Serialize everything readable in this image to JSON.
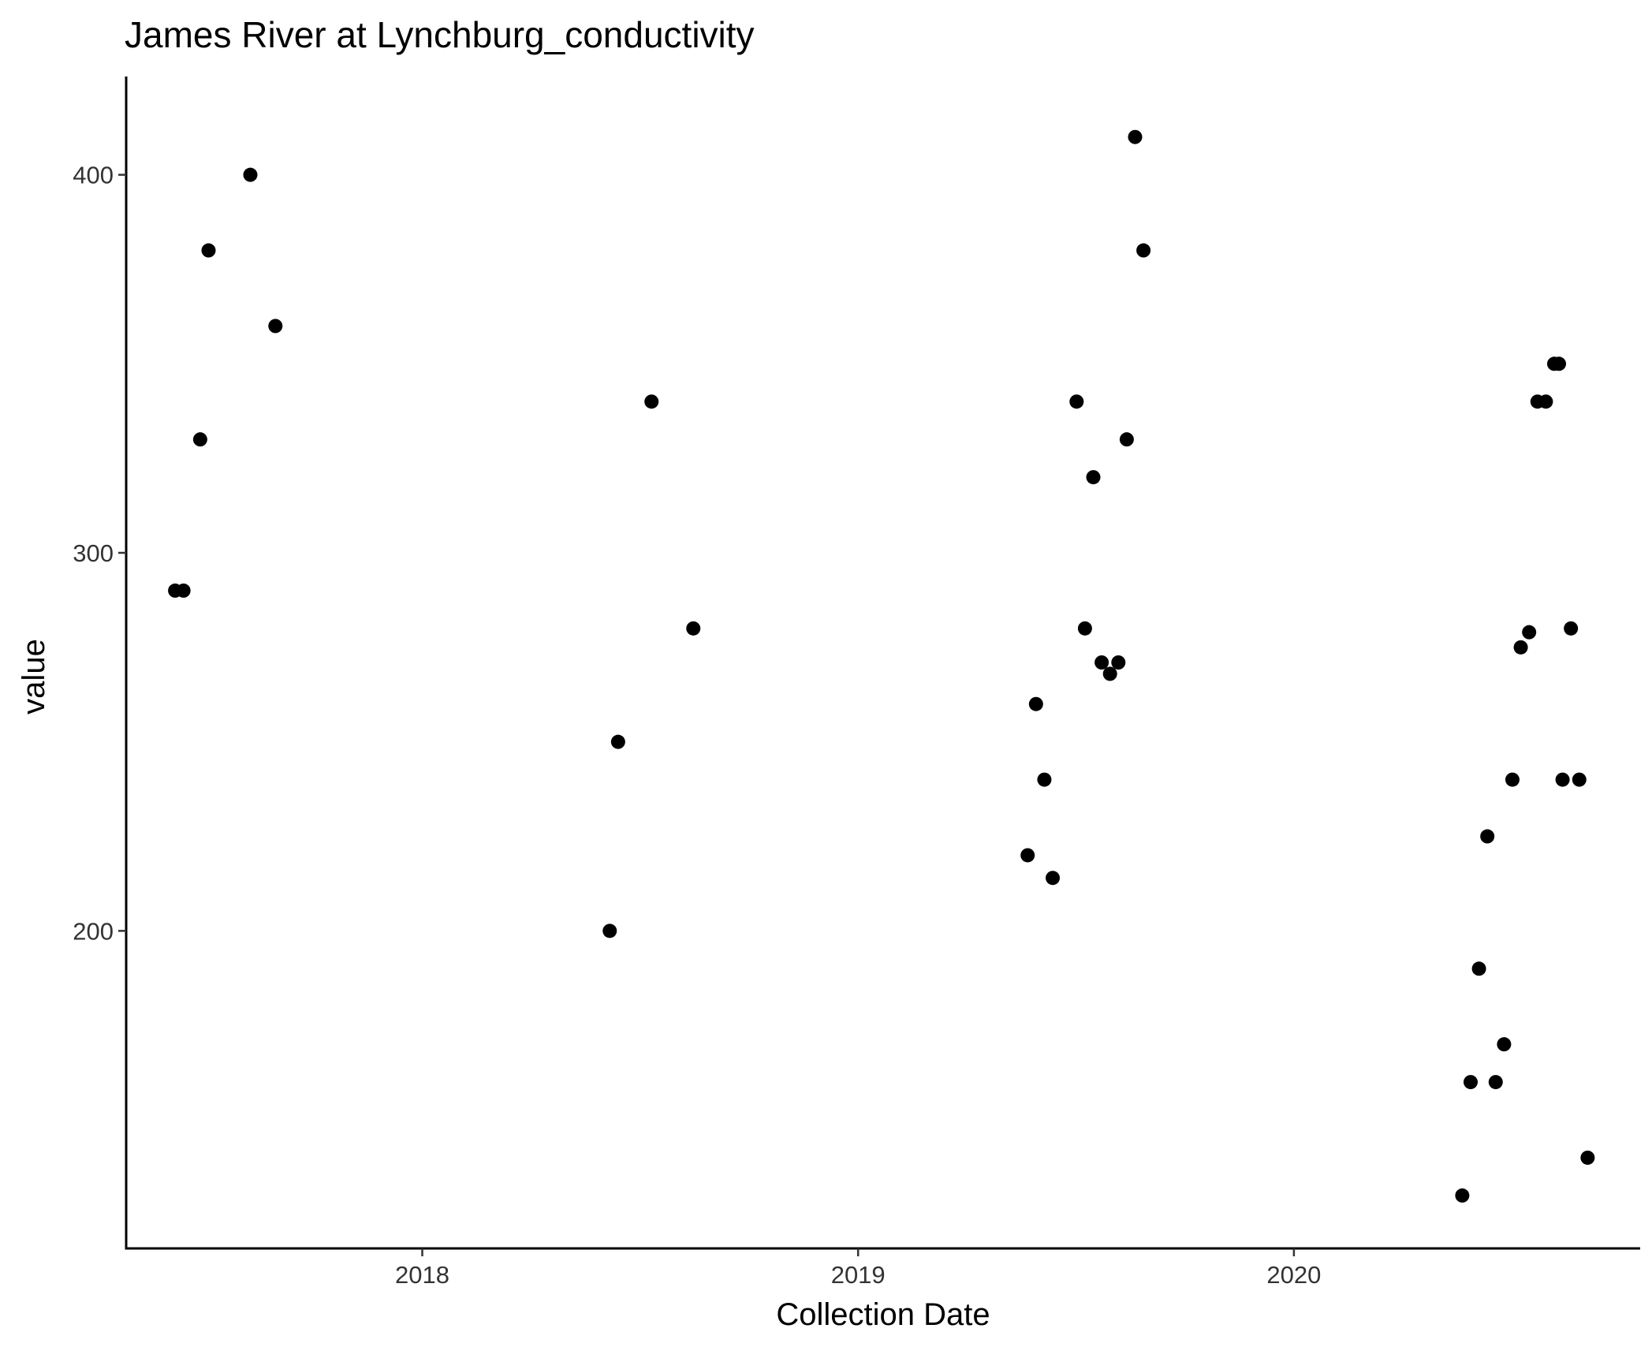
{
  "chart_data": {
    "type": "scatter",
    "title": "James River at Lynchburg_conductivity",
    "xlabel": "Collection Date",
    "ylabel": "value",
    "x_axis_type": "date",
    "xlim": [
      "2017-04-28",
      "2020-10-17"
    ],
    "ylim": [
      116,
      426
    ],
    "x_ticks": [
      {
        "value": "2018-01-01",
        "label": "2018"
      },
      {
        "value": "2019-01-01",
        "label": "2019"
      },
      {
        "value": "2020-01-01",
        "label": "2020"
      }
    ],
    "y_ticks": [
      {
        "value": 200,
        "label": "200"
      },
      {
        "value": 300,
        "label": "300"
      },
      {
        "value": 400,
        "label": "400"
      }
    ],
    "grid": false,
    "legend": "none",
    "point_color": "#000000",
    "points": [
      {
        "x": "2017-06-08",
        "y": 290
      },
      {
        "x": "2017-06-15",
        "y": 290
      },
      {
        "x": "2017-06-29",
        "y": 330
      },
      {
        "x": "2017-07-06",
        "y": 380
      },
      {
        "x": "2017-08-10",
        "y": 400
      },
      {
        "x": "2017-08-31",
        "y": 360
      },
      {
        "x": "2018-06-07",
        "y": 200
      },
      {
        "x": "2018-06-14",
        "y": 250
      },
      {
        "x": "2018-07-12",
        "y": 340
      },
      {
        "x": "2018-08-16",
        "y": 280
      },
      {
        "x": "2019-05-23",
        "y": 220
      },
      {
        "x": "2019-05-30",
        "y": 260
      },
      {
        "x": "2019-06-06",
        "y": 240
      },
      {
        "x": "2019-06-13",
        "y": 214
      },
      {
        "x": "2019-07-03",
        "y": 340
      },
      {
        "x": "2019-07-10",
        "y": 280
      },
      {
        "x": "2019-07-17",
        "y": 320
      },
      {
        "x": "2019-07-24",
        "y": 271
      },
      {
        "x": "2019-07-31",
        "y": 268
      },
      {
        "x": "2019-08-07",
        "y": 271
      },
      {
        "x": "2019-08-14",
        "y": 330
      },
      {
        "x": "2019-08-21",
        "y": 410
      },
      {
        "x": "2019-08-28",
        "y": 380
      },
      {
        "x": "2020-05-21",
        "y": 130
      },
      {
        "x": "2020-05-28",
        "y": 160
      },
      {
        "x": "2020-06-04",
        "y": 190
      },
      {
        "x": "2020-06-11",
        "y": 225
      },
      {
        "x": "2020-06-18",
        "y": 160
      },
      {
        "x": "2020-06-25",
        "y": 170
      },
      {
        "x": "2020-07-02",
        "y": 240
      },
      {
        "x": "2020-07-09",
        "y": 275
      },
      {
        "x": "2020-07-16",
        "y": 279
      },
      {
        "x": "2020-07-23",
        "y": 340
      },
      {
        "x": "2020-07-30",
        "y": 340
      },
      {
        "x": "2020-08-06",
        "y": 350
      },
      {
        "x": "2020-08-10",
        "y": 350
      },
      {
        "x": "2020-08-13",
        "y": 240
      },
      {
        "x": "2020-08-20",
        "y": 280
      },
      {
        "x": "2020-08-27",
        "y": 240
      },
      {
        "x": "2020-09-03",
        "y": 140
      }
    ]
  }
}
